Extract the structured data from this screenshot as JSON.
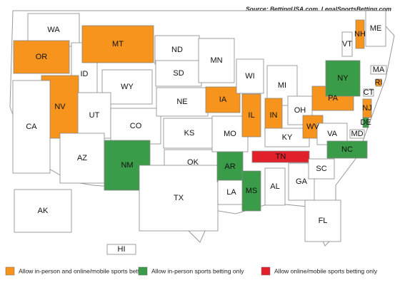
{
  "source": "Source: BettingUSA.com,  LegalSportsBetting.com",
  "legend": [
    {
      "label": "Allow in-person and online/mobile sports betting",
      "color": "#f7941d"
    },
    {
      "label": "Allow in-person sports betting only",
      "color": "#3a9b48"
    },
    {
      "label": "Allow online/mobile sports betting only",
      "color": "#e2202a"
    }
  ],
  "states": [
    {
      "label": "WA",
      "fill": "#ffffff"
    },
    {
      "label": "OR",
      "fill": "#f7941d"
    },
    {
      "label": "ID",
      "fill": "#ffffff"
    },
    {
      "label": "MT",
      "fill": "#f7941d"
    },
    {
      "label": "WY",
      "fill": "#ffffff"
    },
    {
      "label": "NV",
      "fill": "#f7941d"
    },
    {
      "label": "UT",
      "fill": "#ffffff"
    },
    {
      "label": "CA",
      "fill": "#ffffff"
    },
    {
      "label": "AZ",
      "fill": "#ffffff"
    },
    {
      "label": "CO",
      "fill": "#ffffff"
    },
    {
      "label": "NM",
      "fill": "#3a9b48"
    },
    {
      "label": "ND",
      "fill": "#ffffff"
    },
    {
      "label": "SD",
      "fill": "#ffffff"
    },
    {
      "label": "NE",
      "fill": "#ffffff"
    },
    {
      "label": "KS",
      "fill": "#ffffff"
    },
    {
      "label": "OK",
      "fill": "#ffffff"
    },
    {
      "label": "TX",
      "fill": "#ffffff"
    },
    {
      "label": "MN",
      "fill": "#ffffff"
    },
    {
      "label": "IA",
      "fill": "#f7941d"
    },
    {
      "label": "MO",
      "fill": "#ffffff"
    },
    {
      "label": "AR",
      "fill": "#3a9b48"
    },
    {
      "label": "LA",
      "fill": "#ffffff"
    },
    {
      "label": "WI",
      "fill": "#ffffff"
    },
    {
      "label": "IL",
      "fill": "#f7941d"
    },
    {
      "label": "MS",
      "fill": "#3a9b48"
    },
    {
      "label": "MI",
      "fill": "#ffffff"
    },
    {
      "label": "IN",
      "fill": "#f7941d"
    },
    {
      "label": "KY",
      "fill": "#ffffff"
    },
    {
      "label": "TN",
      "fill": "#e2202a"
    },
    {
      "label": "AL",
      "fill": "#ffffff"
    },
    {
      "label": "OH",
      "fill": "#ffffff"
    },
    {
      "label": "GA",
      "fill": "#ffffff"
    },
    {
      "label": "FL",
      "fill": "#ffffff"
    },
    {
      "label": "WV",
      "fill": "#f7941d"
    },
    {
      "label": "VA",
      "fill": "#ffffff"
    },
    {
      "label": "NC",
      "fill": "#3a9b48"
    },
    {
      "label": "SC",
      "fill": "#ffffff"
    },
    {
      "label": "PA",
      "fill": "#f7941d"
    },
    {
      "label": "NY",
      "fill": "#3a9b48"
    },
    {
      "label": "VT",
      "fill": "#ffffff"
    },
    {
      "label": "NH",
      "fill": "#f7941d"
    },
    {
      "label": "ME",
      "fill": "#ffffff"
    },
    {
      "label": "MA",
      "fill": "#ffffff"
    },
    {
      "label": "RI",
      "fill": "#f7941d"
    },
    {
      "label": "CT",
      "fill": "#ffffff"
    },
    {
      "label": "NJ",
      "fill": "#f7941d"
    },
    {
      "label": "DE",
      "fill": "#3a9b48"
    },
    {
      "label": "MD",
      "fill": "#ffffff"
    },
    {
      "label": "AK",
      "fill": "#ffffff"
    },
    {
      "label": "HI",
      "fill": "#ffffff"
    }
  ]
}
